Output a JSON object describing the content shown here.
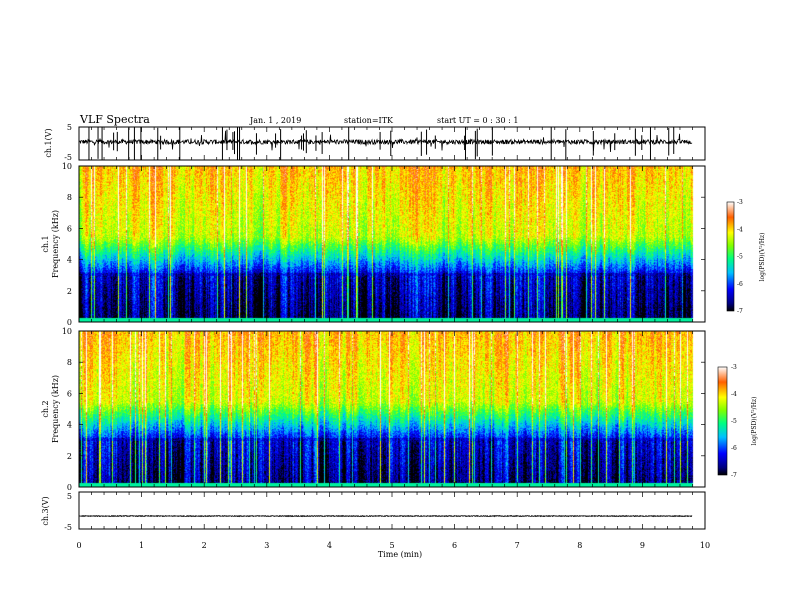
{
  "header": {
    "title": "VLF Spectra",
    "date": "Jan. 1 , 2019",
    "station": "station=ITK",
    "start": "start  UT =   0 : 30 : 1"
  },
  "chart_data": [
    {
      "type": "line",
      "name_label": "ch.1(V)",
      "ylim": [
        -5,
        5
      ],
      "yticks": [
        "5",
        "-5"
      ],
      "baseline": 0.5
    },
    {
      "type": "heatmap",
      "ylabel_top": "ch.1",
      "ylabel": "Frequency (kHz)",
      "ylim": [
        0,
        10
      ],
      "yticks": [
        "0",
        "2",
        "4",
        "6",
        "8",
        "10"
      ],
      "colorbar": {
        "label": "log(PSD)(V²/Hz)",
        "range": [
          -7,
          -3
        ],
        "ticks": [
          "-3",
          "-4",
          "-5",
          "-6",
          "-7"
        ]
      }
    },
    {
      "type": "heatmap",
      "ylabel_top": "ch.2",
      "ylabel": "Frequency (kHz)",
      "ylim": [
        0,
        10
      ],
      "yticks": [
        "0",
        "2",
        "4",
        "6",
        "8",
        "10"
      ],
      "colorbar": {
        "label": "log(PSD)(V²/Hz)",
        "range": [
          -7,
          -3
        ],
        "ticks": [
          "-3",
          "-4",
          "-5",
          "-6",
          "-7"
        ]
      }
    },
    {
      "type": "line",
      "name_label": "ch.3(V)",
      "ylim": [
        -5,
        5
      ],
      "yticks": [
        "5",
        "-5"
      ],
      "baseline": -1.5
    }
  ],
  "xaxis": {
    "label": "Time (min)",
    "range": [
      0,
      10
    ],
    "data_end": 9.8,
    "ticks": [
      "0",
      "1",
      "2",
      "3",
      "4",
      "5",
      "6",
      "7",
      "8",
      "9",
      "10"
    ]
  }
}
